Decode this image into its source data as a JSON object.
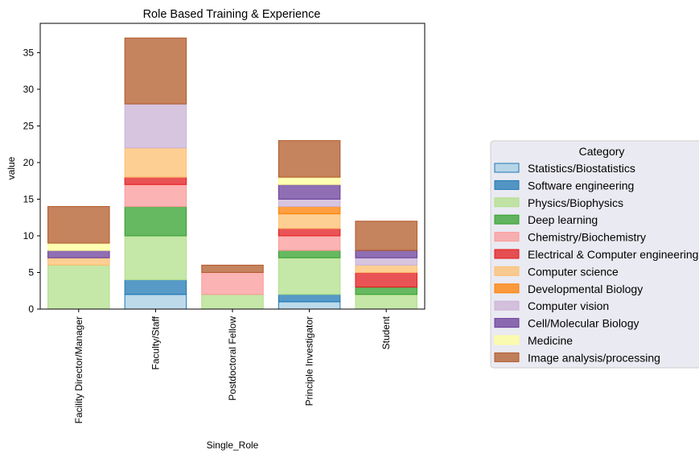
{
  "chart_data": {
    "type": "bar",
    "stacked": true,
    "title": "Role Based Training & Experience",
    "xlabel": "Single_Role",
    "ylabel": "value",
    "ylim": [
      0,
      39
    ],
    "yticks": [
      0,
      5,
      10,
      15,
      20,
      25,
      30,
      35
    ],
    "categories": [
      "Facility Director/Manager",
      "Faculty/Staff",
      "Postdoctoral Fellow",
      "Principle Investigator",
      "Student"
    ],
    "legend": {
      "title": "Category",
      "placement": "right, outside plot"
    },
    "grid": false,
    "series": [
      {
        "name": "Statistics/Biostatistics",
        "fill": "#a6cee3",
        "edge": "#1f78b4",
        "values": [
          0,
          2,
          0,
          1,
          0
        ]
      },
      {
        "name": "Software engineering",
        "fill": "#1f78b4",
        "edge": "#1f78b4",
        "values": [
          0,
          2,
          0,
          1,
          0
        ]
      },
      {
        "name": "Physics/Biophysics",
        "fill": "#b2df8a",
        "edge": "#b2df8a",
        "values": [
          6,
          6,
          2,
          5,
          2
        ]
      },
      {
        "name": "Deep learning",
        "fill": "#33a02c",
        "edge": "#33a02c",
        "values": [
          0,
          4,
          0,
          1,
          1
        ]
      },
      {
        "name": "Chemistry/Biochemistry",
        "fill": "#fb9a99",
        "edge": "#fb9a99",
        "values": [
          0,
          3,
          3,
          2,
          0
        ]
      },
      {
        "name": "Electrical & Computer engineering",
        "fill": "#e31a1c",
        "edge": "#e31a1c",
        "values": [
          0,
          1,
          0,
          1,
          2
        ]
      },
      {
        "name": "Computer science",
        "fill": "#fdbf6f",
        "edge": "#fdbf6f",
        "values": [
          1,
          4,
          0,
          2,
          1
        ]
      },
      {
        "name": "Developmental Biology",
        "fill": "#ff7f00",
        "edge": "#ff7f00",
        "values": [
          0,
          0,
          0,
          1,
          0
        ]
      },
      {
        "name": "Computer vision",
        "fill": "#cab2d6",
        "edge": "#cab2d6",
        "values": [
          0,
          6,
          0,
          1,
          1
        ]
      },
      {
        "name": "Cell/Molecular Biology",
        "fill": "#6a3d9a",
        "edge": "#6a3d9a",
        "values": [
          1,
          0,
          0,
          2,
          1
        ]
      },
      {
        "name": "Medicine",
        "fill": "#ffff99",
        "edge": "#ffff99",
        "values": [
          1,
          0,
          0,
          1,
          0
        ]
      },
      {
        "name": "Image analysis/processing",
        "fill": "#b15928",
        "edge": "#b15928",
        "values": [
          5,
          9,
          1,
          5,
          4
        ]
      }
    ]
  }
}
